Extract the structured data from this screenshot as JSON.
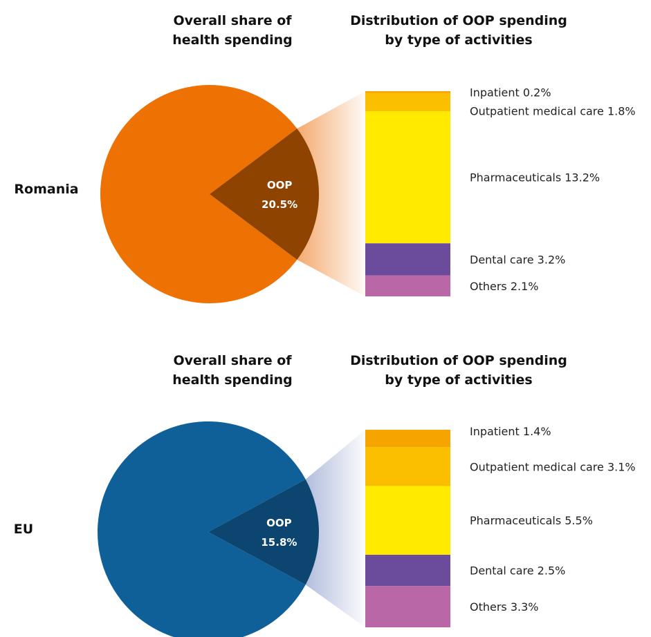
{
  "chart_data": [
    {
      "type": "pie",
      "country": "Romania",
      "pie_title": [
        "Overall share of",
        "health spending"
      ],
      "bar_title": [
        "Distribution of OOP spending",
        "by type of activities"
      ],
      "oop_label": "OOP",
      "oop_value": 20.5,
      "oop_text": "20.5%",
      "colors": {
        "main": "#EE7203",
        "oop": "#8E4300",
        "fan": "#F3A05E"
      },
      "categories": [
        {
          "name": "Inpatient",
          "value": 0.2,
          "label": "Inpatient 0.2%",
          "color": "#F5A400"
        },
        {
          "name": "Outpatient medical care",
          "value": 1.8,
          "label": "Outpatient medical care 1.8%",
          "color": "#FBBF00"
        },
        {
          "name": "Pharmaceuticals",
          "value": 13.2,
          "label": "Pharmaceuticals 13.2%",
          "color": "#FFEA00"
        },
        {
          "name": "Dental care",
          "value": 3.2,
          "label": "Dental care 3.2%",
          "color": "#6B4B9B"
        },
        {
          "name": "Others",
          "value": 2.1,
          "label": "Others 2.1%",
          "color": "#BA67A8"
        }
      ]
    },
    {
      "type": "pie",
      "country": "EU",
      "pie_title": [
        "Overall share of",
        "health spending"
      ],
      "bar_title": [
        "Distribution of OOP spending",
        "by type of activities"
      ],
      "oop_label": "OOP",
      "oop_value": 15.8,
      "oop_text": "15.8%",
      "colors": {
        "main": "#0F5F99",
        "oop": "#0C4670",
        "fan": "#A9B6D9"
      },
      "categories": [
        {
          "name": "Inpatient",
          "value": 1.4,
          "label": "Inpatient 1.4%",
          "color": "#F5A400"
        },
        {
          "name": "Outpatient medical care",
          "value": 3.1,
          "label": "Outpatient medical care 3.1%",
          "color": "#FBBF00"
        },
        {
          "name": "Pharmaceuticals",
          "value": 5.5,
          "label": "Pharmaceuticals 5.5%",
          "color": "#FFEA00"
        },
        {
          "name": "Dental care",
          "value": 2.5,
          "label": "Dental care 2.5%",
          "color": "#6B4B9B"
        },
        {
          "name": "Others",
          "value": 3.3,
          "label": "Others 3.3%",
          "color": "#BA67A8"
        }
      ]
    }
  ]
}
